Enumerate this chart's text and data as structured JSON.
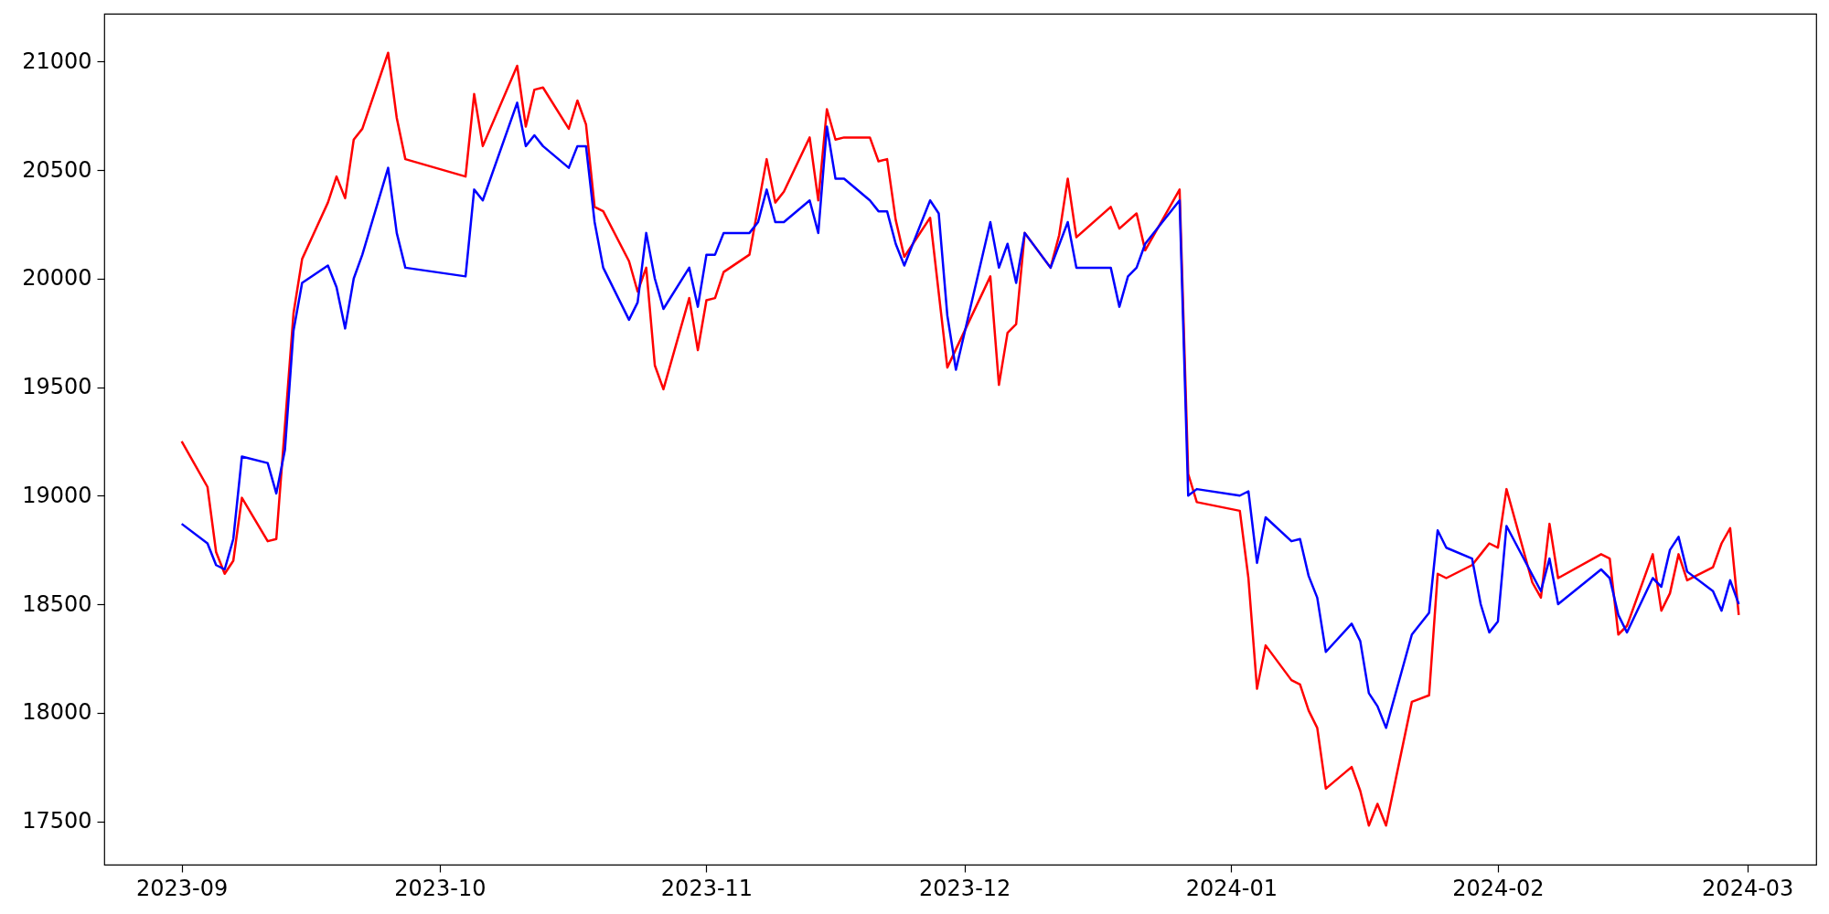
{
  "chart_data": {
    "type": "line",
    "xlim": [
      "2023-08-23",
      "2024-03-09"
    ],
    "xticks": [
      "2023-09",
      "2023-10",
      "2023-11",
      "2023-12",
      "2024-01",
      "2024-02",
      "2024-03"
    ],
    "ylim": [
      17300,
      21220
    ],
    "yticks": [
      17500,
      18000,
      18500,
      19000,
      19500,
      20000,
      20500,
      21000
    ],
    "grid": false,
    "series": [
      {
        "color": "#ff0000",
        "x": [
          "2023-09-01",
          "2023-09-04",
          "2023-09-05",
          "2023-09-06",
          "2023-09-07",
          "2023-09-08",
          "2023-09-11",
          "2023-09-12",
          "2023-09-14",
          "2023-09-15",
          "2023-09-18",
          "2023-09-19",
          "2023-09-20",
          "2023-09-21",
          "2023-09-22",
          "2023-09-25",
          "2023-09-26",
          "2023-09-27",
          "2023-10-04",
          "2023-10-05",
          "2023-10-06",
          "2023-10-10",
          "2023-10-11",
          "2023-10-12",
          "2023-10-13",
          "2023-10-16",
          "2023-10-17",
          "2023-10-18",
          "2023-10-19",
          "2023-10-20",
          "2023-10-23",
          "2023-10-24",
          "2023-10-25",
          "2023-10-26",
          "2023-10-27",
          "2023-10-30",
          "2023-10-31",
          "2023-11-01",
          "2023-11-02",
          "2023-11-03",
          "2023-11-06",
          "2023-11-08",
          "2023-11-09",
          "2023-11-10",
          "2023-11-13",
          "2023-11-14",
          "2023-11-15",
          "2023-11-16",
          "2023-11-17",
          "2023-11-20",
          "2023-11-21",
          "2023-11-22",
          "2023-11-23",
          "2023-11-24",
          "2023-11-27",
          "2023-11-29",
          "2023-12-04",
          "2023-12-05",
          "2023-12-06",
          "2023-12-07",
          "2023-12-08",
          "2023-12-11",
          "2023-12-12",
          "2023-12-13",
          "2023-12-14",
          "2023-12-18",
          "2023-12-19",
          "2023-12-21",
          "2023-12-22",
          "2023-12-26",
          "2023-12-27",
          "2023-12-28",
          "2024-01-02",
          "2024-01-03",
          "2024-01-04",
          "2024-01-05",
          "2024-01-08",
          "2024-01-09",
          "2024-01-10",
          "2024-01-11",
          "2024-01-12",
          "2024-01-15",
          "2024-01-16",
          "2024-01-17",
          "2024-01-18",
          "2024-01-19",
          "2024-01-22",
          "2024-01-24",
          "2024-01-25",
          "2024-01-26",
          "2024-01-29",
          "2024-01-30",
          "2024-01-31",
          "2024-02-01",
          "2024-02-02",
          "2024-02-05",
          "2024-02-06",
          "2024-02-07",
          "2024-02-08",
          "2024-02-13",
          "2024-02-14",
          "2024-02-15",
          "2024-02-16",
          "2024-02-19",
          "2024-02-20",
          "2024-02-21",
          "2024-02-22",
          "2024-02-23",
          "2024-02-26",
          "2024-02-27",
          "2024-02-28",
          "2024-02-29"
        ],
        "values": [
          19250,
          19040,
          18740,
          18640,
          18700,
          18990,
          18790,
          18800,
          19840,
          20090,
          20350,
          20470,
          20370,
          20640,
          20690,
          21040,
          20740,
          20550,
          20470,
          20850,
          20610,
          20980,
          20700,
          20870,
          20880,
          20690,
          20820,
          20710,
          20330,
          20310,
          20080,
          19940,
          20050,
          19600,
          19490,
          19910,
          19670,
          19900,
          19910,
          20030,
          20110,
          20550,
          20350,
          20400,
          20650,
          20360,
          20780,
          20640,
          20650,
          20650,
          20540,
          20550,
          20270,
          20100,
          20280,
          19590,
          20010,
          19510,
          19750,
          19790,
          20210,
          20050,
          20200,
          20460,
          20190,
          20330,
          20230,
          20300,
          20130,
          20410,
          19100,
          18970,
          18930,
          18620,
          18110,
          18310,
          18150,
          18130,
          18010,
          17930,
          17650,
          17750,
          17640,
          17480,
          17580,
          17480,
          18050,
          18080,
          18640,
          18620,
          18680,
          18730,
          18780,
          18760,
          19030,
          18600,
          18530,
          18870,
          18620,
          18730,
          18710,
          18360,
          18400,
          18730,
          18470,
          18550,
          18730,
          18610,
          18670,
          18780,
          18850,
          18450
        ]
      },
      {
        "color": "#0000ff",
        "x": [
          "2023-09-01",
          "2023-09-04",
          "2023-09-05",
          "2023-09-06",
          "2023-09-07",
          "2023-09-08",
          "2023-09-11",
          "2023-09-12",
          "2023-09-13",
          "2023-09-14",
          "2023-09-15",
          "2023-09-18",
          "2023-09-19",
          "2023-09-20",
          "2023-09-21",
          "2023-09-22",
          "2023-09-25",
          "2023-09-26",
          "2023-09-27",
          "2023-10-04",
          "2023-10-05",
          "2023-10-06",
          "2023-10-10",
          "2023-10-11",
          "2023-10-12",
          "2023-10-13",
          "2023-10-16",
          "2023-10-17",
          "2023-10-18",
          "2023-10-19",
          "2023-10-20",
          "2023-10-23",
          "2023-10-24",
          "2023-10-25",
          "2023-10-26",
          "2023-10-27",
          "2023-10-30",
          "2023-10-31",
          "2023-11-01",
          "2023-11-02",
          "2023-11-03",
          "2023-11-06",
          "2023-11-07",
          "2023-11-08",
          "2023-11-09",
          "2023-11-10",
          "2023-11-13",
          "2023-11-14",
          "2023-11-15",
          "2023-11-16",
          "2023-11-17",
          "2023-11-20",
          "2023-11-21",
          "2023-11-22",
          "2023-11-23",
          "2023-11-24",
          "2023-11-27",
          "2023-11-28",
          "2023-11-29",
          "2023-11-30",
          "2023-12-04",
          "2023-12-05",
          "2023-12-06",
          "2023-12-07",
          "2023-12-08",
          "2023-12-11",
          "2023-12-13",
          "2023-12-14",
          "2023-12-18",
          "2023-12-19",
          "2023-12-20",
          "2023-12-21",
          "2023-12-22",
          "2023-12-26",
          "2023-12-27",
          "2023-12-28",
          "2024-01-02",
          "2024-01-03",
          "2024-01-04",
          "2024-01-05",
          "2024-01-08",
          "2024-01-09",
          "2024-01-10",
          "2024-01-11",
          "2024-01-12",
          "2024-01-15",
          "2024-01-16",
          "2024-01-17",
          "2024-01-18",
          "2024-01-19",
          "2024-01-22",
          "2024-01-24",
          "2024-01-25",
          "2024-01-26",
          "2024-01-29",
          "2024-01-30",
          "2024-01-31",
          "2024-02-01",
          "2024-02-02",
          "2024-02-06",
          "2024-02-07",
          "2024-02-08",
          "2024-02-13",
          "2024-02-14",
          "2024-02-15",
          "2024-02-16",
          "2024-02-19",
          "2024-02-20",
          "2024-02-21",
          "2024-02-22",
          "2024-02-23",
          "2024-02-26",
          "2024-02-27",
          "2024-02-28",
          "2024-02-29"
        ],
        "values": [
          18870,
          18780,
          18680,
          18660,
          18800,
          19180,
          19150,
          19010,
          19210,
          19760,
          19980,
          20060,
          19960,
          19770,
          20000,
          20110,
          20510,
          20210,
          20050,
          20010,
          20410,
          20360,
          20810,
          20610,
          20660,
          20610,
          20510,
          20610,
          20610,
          20260,
          20050,
          19810,
          19890,
          20210,
          20000,
          19860,
          20050,
          19870,
          20110,
          20110,
          20210,
          20210,
          20260,
          20410,
          20260,
          20260,
          20360,
          20210,
          20700,
          20460,
          20460,
          20360,
          20310,
          20310,
          20160,
          20060,
          20360,
          20300,
          19830,
          19580,
          20260,
          20050,
          20160,
          19980,
          20210,
          20050,
          20260,
          20050,
          20050,
          19870,
          20010,
          20050,
          20160,
          20360,
          19000,
          19030,
          19000,
          19020,
          18690,
          18900,
          18790,
          18800,
          18630,
          18530,
          18280,
          18410,
          18330,
          18090,
          18030,
          17930,
          18360,
          18460,
          18840,
          18760,
          18710,
          18500,
          18370,
          18420,
          18860,
          18560,
          18710,
          18500,
          18660,
          18620,
          18450,
          18370,
          18620,
          18580,
          18750,
          18810,
          18650,
          18560,
          18470,
          18610,
          18500
        ]
      }
    ]
  }
}
